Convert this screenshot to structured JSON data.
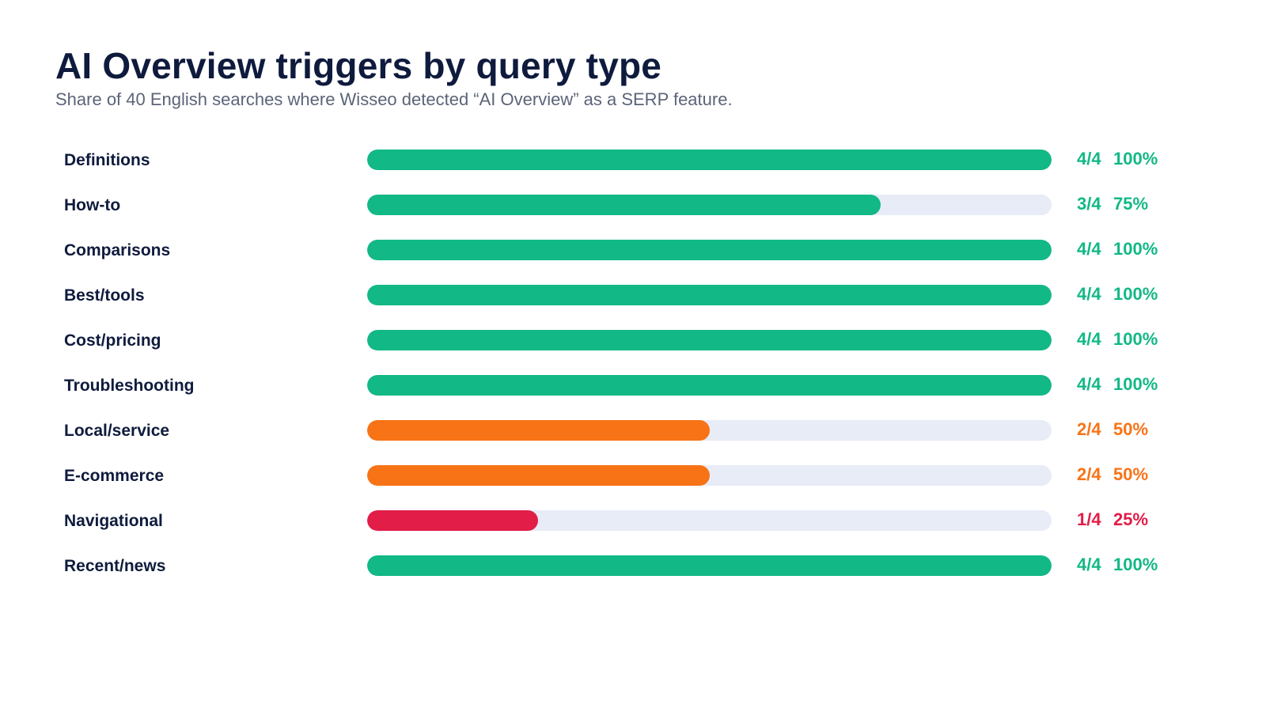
{
  "title": "AI Overview triggers by query type",
  "subtitle": "Share of 40 English searches where Wisseo detected “AI Overview” as a SERP feature.",
  "colors": {
    "green": "#12b886",
    "orange": "#f77316",
    "red": "#e11d48",
    "track": "#e8ecf7",
    "text": "#0f1b3d"
  },
  "chart_data": {
    "type": "bar",
    "orientation": "horizontal",
    "title": "AI Overview triggers by query type",
    "subtitle": "Share of 40 English searches where Wisseo detected “AI Overview” as a SERP feature.",
    "xlim": [
      0,
      100
    ],
    "grid": false,
    "legend": "none",
    "categories": [
      "Definitions",
      "How-to",
      "Comparisons",
      "Best/tools",
      "Cost/pricing",
      "Troubleshooting",
      "Local/service",
      "E-commerce",
      "Navigational",
      "Recent/news"
    ],
    "values": [
      100,
      75,
      100,
      100,
      100,
      100,
      50,
      50,
      25,
      100
    ],
    "count_labels": [
      "4/4",
      "3/4",
      "4/4",
      "4/4",
      "4/4",
      "4/4",
      "2/4",
      "2/4",
      "1/4",
      "4/4"
    ],
    "percent_labels": [
      "100%",
      "75%",
      "100%",
      "100%",
      "100%",
      "100%",
      "50%",
      "50%",
      "25%",
      "100%"
    ],
    "bar_colors": [
      "#12b886",
      "#12b886",
      "#12b886",
      "#12b886",
      "#12b886",
      "#12b886",
      "#f77316",
      "#f77316",
      "#e11d48",
      "#12b886"
    ]
  }
}
